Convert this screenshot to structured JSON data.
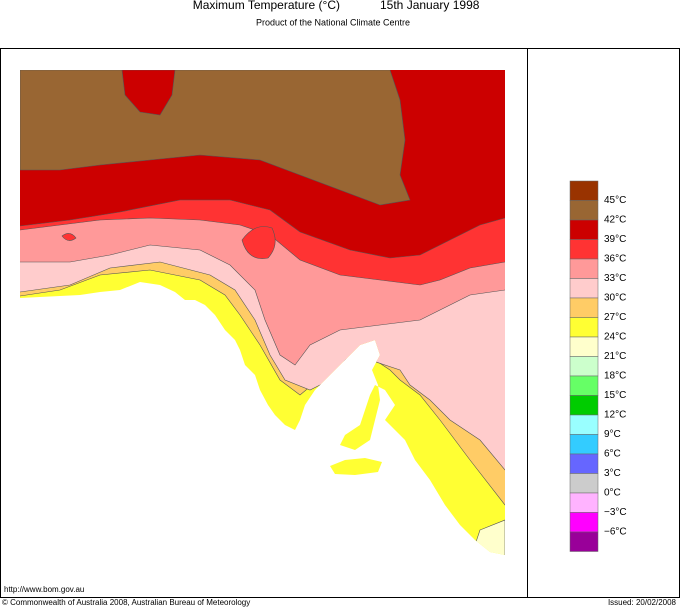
{
  "header": {
    "title": "Maximum Temperature (°C)",
    "date": "15th January 1998",
    "subtitle": "Product of the National Climate Centre"
  },
  "legend": {
    "swatches": [
      "#993300",
      "#996633",
      "#cc0000",
      "#ff3333",
      "#ff9999",
      "#ffcccc",
      "#ffcc66",
      "#ffff33",
      "#ffffcc",
      "#ccffcc",
      "#66ff66",
      "#00cc00",
      "#99ffff",
      "#33ccff",
      "#6666ff",
      "#cccccc",
      "#ffb3ff",
      "#ff00ff",
      "#990099"
    ],
    "labels": [
      "45°C",
      "42°C",
      "39°C",
      "36°C",
      "33°C",
      "30°C",
      "27°C",
      "24°C",
      "21°C",
      "18°C",
      "15°C",
      "12°C",
      "9°C",
      "6°C",
      "3°C",
      "0°C",
      "−3°C",
      "−6°C"
    ]
  },
  "footer": {
    "url": "http://www.bom.gov.au",
    "copyright": "© Commonwealth of Australia 2008, Australian Bureau of Meteorology",
    "issued": "Issued: 20/02/2008"
  }
}
